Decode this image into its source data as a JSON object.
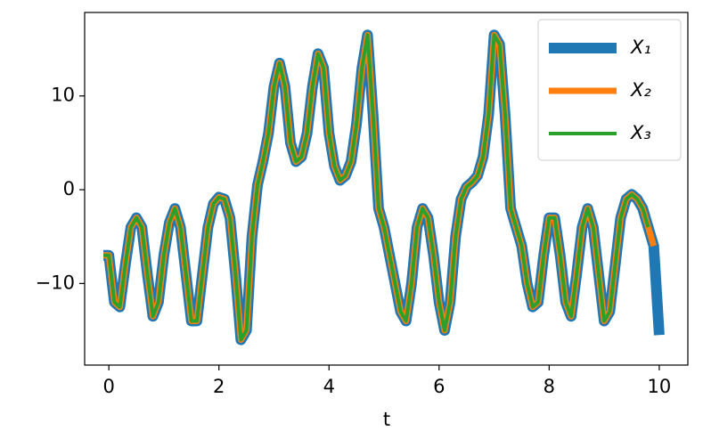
{
  "chart_data": {
    "type": "line",
    "xlabel": "t",
    "x": [
      -0.1,
      0,
      0.1,
      0.2,
      0.3,
      0.4,
      0.5,
      0.6,
      0.7,
      0.8,
      0.9,
      1.0,
      1.1,
      1.2,
      1.3,
      1.4,
      1.5,
      1.6,
      1.7,
      1.8,
      1.9,
      2.0,
      2.1,
      2.2,
      2.3,
      2.4,
      2.5,
      2.6,
      2.7,
      2.8,
      2.9,
      3.0,
      3.1,
      3.2,
      3.3,
      3.4,
      3.5,
      3.6,
      3.7,
      3.8,
      3.9,
      4.0,
      4.1,
      4.2,
      4.3,
      4.4,
      4.5,
      4.6,
      4.7,
      4.8,
      4.9,
      5.0,
      5.1,
      5.2,
      5.3,
      5.4,
      5.5,
      5.6,
      5.7,
      5.8,
      5.9,
      6.0,
      6.1,
      6.2,
      6.3,
      6.4,
      6.5,
      6.6,
      6.7,
      6.8,
      6.9,
      7.0,
      7.1,
      7.2,
      7.3,
      7.4,
      7.5,
      7.6,
      7.7,
      7.8,
      7.9,
      8.0,
      8.1,
      8.2,
      8.3,
      8.4,
      8.5,
      8.6,
      8.7,
      8.8,
      8.9,
      9.0,
      9.1,
      9.2,
      9.3,
      9.4,
      9.5,
      9.6,
      9.7,
      9.8,
      9.9,
      10.0
    ],
    "series": [
      {
        "name": "X₁",
        "color": "#1f77b4",
        "values": [
          -7,
          -7,
          -12,
          -12.5,
          -8,
          -4,
          -3,
          -4,
          -9,
          -13.5,
          -12,
          -7,
          -3.5,
          -2,
          -4,
          -9,
          -14,
          -14,
          -9,
          -4,
          -1.5,
          -0.8,
          -1,
          -3,
          -9,
          -16,
          -15,
          -5,
          0.5,
          3,
          6,
          11,
          13.5,
          11,
          5,
          3,
          3.5,
          6,
          11,
          14.5,
          13,
          6,
          2.5,
          1,
          1.5,
          3,
          7,
          13,
          16.5,
          8,
          -2,
          -4,
          -7,
          -10,
          -13,
          -14,
          -10,
          -4,
          -2,
          -3,
          -7,
          -12,
          -15,
          -12,
          -5,
          -1,
          0.3,
          0.8,
          1.5,
          3.5,
          8,
          16.5,
          15.5,
          8,
          -2,
          -4,
          -6,
          -10,
          -12.5,
          -12,
          -7,
          -3,
          -3,
          -7,
          -12,
          -13.5,
          -9,
          -4,
          -2,
          -4,
          -9,
          -14,
          -13,
          -8,
          -3,
          -1,
          -0.5,
          -1,
          -2,
          -4,
          -6,
          -15.5
        ]
      },
      {
        "name": "X₂",
        "color": "#ff7f0e",
        "values": [
          -7,
          -7,
          -12,
          -12.5,
          -8,
          -4,
          -3,
          -4,
          -9,
          -13.5,
          -12,
          -7,
          -3.5,
          -2,
          -4,
          -9,
          -14,
          -14,
          -9,
          -4,
          -1.5,
          -0.8,
          -1,
          -3,
          -9,
          -16,
          -15,
          -5,
          0.5,
          3,
          6,
          11,
          13.5,
          11,
          5,
          3,
          3.5,
          6,
          11,
          14.5,
          13,
          6,
          2.5,
          1,
          1.5,
          3,
          7,
          13,
          16.5,
          8,
          -2,
          -4,
          -7,
          -10,
          -13,
          -14,
          -10,
          -4,
          -2,
          -3,
          -7,
          -12,
          -15,
          -12,
          -5,
          -1,
          0.3,
          0.8,
          1.5,
          3.5,
          8,
          16.5,
          15.5,
          8,
          -2,
          -4,
          -6,
          -10,
          -12.5,
          -12,
          -7,
          -3,
          -3,
          -7,
          -12,
          -13.5,
          -9,
          -4,
          -2,
          -4,
          -9,
          -14,
          -13,
          -8,
          -3,
          -1,
          -0.5,
          -1,
          -2,
          -4,
          -6,
          null
        ]
      },
      {
        "name": "X₃",
        "color": "#2ca02c",
        "values": [
          -7,
          -7,
          -12,
          -12.5,
          -8,
          -4,
          -3,
          -4,
          -9,
          -13.5,
          -12,
          -7,
          -3.5,
          -2,
          -4,
          -9,
          -14,
          -14,
          -9,
          -4,
          -1.5,
          -0.8,
          -1,
          -3,
          -9,
          -16,
          -15,
          -5,
          0.5,
          3,
          6,
          11,
          13.5,
          11,
          5,
          3,
          3.5,
          6,
          11,
          14.5,
          13,
          6,
          2.5,
          1,
          1.5,
          3,
          7,
          13,
          16.5,
          8,
          -2,
          -4,
          -7,
          -10,
          -13,
          -14,
          -10,
          -4,
          -2,
          -3,
          -7,
          -12,
          -15,
          -12,
          -5,
          -1,
          0.3,
          0.8,
          1.5,
          3.5,
          8,
          16.5,
          15.5,
          8,
          -2,
          -4,
          -6,
          -10,
          -12.5,
          -12,
          -7,
          -3,
          -3,
          -7,
          -12,
          -13.5,
          -9,
          -4,
          -2,
          -4,
          -9,
          -14,
          -13,
          -8,
          -3,
          -1,
          -0.5,
          -1,
          -2,
          -4,
          null,
          null
        ]
      }
    ],
    "xlim": [
      -0.44,
      10.52
    ],
    "ylim": [
      -18.7,
      18.9
    ],
    "xticks": [
      0,
      2,
      4,
      6,
      8,
      10
    ],
    "yticks": [
      {
        "value": -10,
        "label": "−10"
      },
      0,
      10
    ],
    "legend": "upper right"
  }
}
